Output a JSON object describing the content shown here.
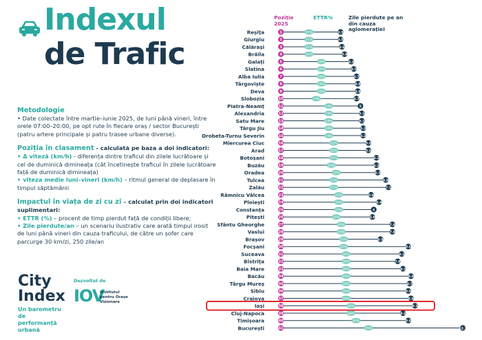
{
  "title": {
    "line1": "Indexul",
    "line2": "de Trafic"
  },
  "methodology": {
    "heading": "Metodologie",
    "text": "• Date colectate între martie–iunie 2025, de luni până vineri, între orele 07:00–20:00, pe opt rute în fiecare oraș / sector București (patru artere principale și patru trasee urbane diverse)."
  },
  "ranking": {
    "heading": "Poziția în clasament",
    "heading_suffix": " - calculată pe baza a doi indicatori:",
    "b1_label": "• Δ viteză (km/h)",
    "b1_text": "- diferența dintre traficul din zilele lucrătoare și cel de duminică dimineața (cât încetinește traficul în zilele lucrătoare față de duminică dimineața)",
    "b2_label": "• viteza medie luni–vineri (km/h)",
    "b2_text": " – ritmul general de deplasare în timpul săptămânii"
  },
  "impact": {
    "heading": "Impactul în viața de zi cu zi",
    "heading_suffix": " – calculat prin doi indicatori suplimentari:",
    "b1_label": "• ETTR (%)",
    "b1_text": " – procent de timp pierdut față de condiții libere;",
    "b2_label": "• Zile pierdute/an",
    "b2_text": " – un scenariu ilustrativ care arată timpul irosit de luni până vineri din cauza traficului, de către un șofer care parcurge 30 km/zi, 250 zile/an"
  },
  "logo": {
    "name1": "City",
    "name2": "Index",
    "tagline": "Un barometru de performanță urbană"
  },
  "developer": {
    "label": "Dezvoltat de",
    "mark": "IOV",
    "name": "Institutul pentru Orașe Vizionare"
  },
  "colors": {
    "teal": "#2aa9a1",
    "navy": "#1d3a4f",
    "magenta": "#c2379c",
    "ettr": "#7dcdbf",
    "highlight": "#e01b24"
  },
  "chart_data": {
    "type": "dot-range",
    "headers": {
      "position": "Poziție 2025",
      "ettr": "ETTR%",
      "days": "Zile pierdute pe an din cauza aglomerației"
    },
    "highlight": "Iași",
    "cities": [
      "Reșița",
      "Giurgiu",
      "Călărași",
      "Brăila",
      "Galați",
      "Slatina",
      "Alba Iulia",
      "Târgoviște",
      "Deva",
      "Slobozia",
      "Piatra-Neamț",
      "Alexandria",
      "Satu Mare",
      "Târgu Jiu",
      "Drobeta-Turnu Severin",
      "Miercurea Ciuc",
      "Arad",
      "Botoșani",
      "Buzău",
      "Oradea",
      "Tulcea",
      "Zalău",
      "Râmnicu Vâlcea",
      "Ploiești",
      "Constanța",
      "Pitești",
      "Sfântu Gheorghe",
      "Vaslui",
      "Brașov",
      "Focșani",
      "Suceava",
      "Bistrița",
      "Baia Mare",
      "Bacău",
      "Târgu Mureș",
      "Sibiu",
      "Craiova",
      "Iași",
      "Cluj-Napoca",
      "Timișoara",
      "București"
    ],
    "positions": [
      1,
      2,
      3,
      4,
      5,
      6,
      7,
      8,
      9,
      10,
      11,
      12,
      13,
      14,
      15,
      16,
      17,
      18,
      19,
      20,
      21,
      22,
      23,
      24,
      25,
      26,
      27,
      28,
      29,
      30,
      31,
      32,
      33,
      34,
      35,
      36,
      37,
      38,
      39,
      40,
      41
    ],
    "ettr": [
      "11%",
      "11%",
      "11%",
      "11%",
      "16%",
      "16%",
      "16%",
      "16%",
      "16%",
      "14%",
      "19%",
      "19%",
      "19%",
      "19%",
      "19%",
      "21%",
      "21%",
      "21%",
      "20%",
      "22%",
      "21%",
      "21%",
      "23%",
      "23%",
      "23%",
      "22%",
      "24%",
      "24%",
      "25%",
      "25%",
      "26%",
      "26%",
      "26%",
      "26%",
      "26%",
      "26%",
      "26%",
      "28%",
      "28%",
      "30%",
      "35%"
    ],
    "days": [
      "3.5",
      "3.5",
      "3.6",
      "3.8",
      "4.3",
      "4.5",
      "4.7",
      "4.8",
      "4.8",
      "4.7",
      "5",
      "5.1",
      "5.1",
      "5.2",
      "5.2",
      "5.6",
      "5.6",
      "6.2",
      "6.2",
      "6.3",
      "6.9",
      "7.1",
      "5.8",
      "6.4",
      "6",
      "5.9",
      "7.4",
      "7.4",
      "6.5",
      "8.6",
      "8.1",
      "7.8",
      "8.2",
      "8.8",
      "8.7",
      "8.6",
      "8.8",
      "9.1",
      "8.2",
      "8.6",
      "12.7"
    ],
    "ettr_x": [
      11,
      11,
      11,
      11,
      16,
      16,
      16,
      16,
      16,
      14,
      19,
      19,
      19,
      19,
      19,
      21,
      21,
      21,
      20,
      22,
      21,
      21,
      23,
      23,
      23,
      22,
      24,
      24,
      25,
      25,
      26,
      26,
      26,
      26,
      26,
      26,
      26,
      28,
      28,
      30,
      35
    ],
    "days_x": [
      3.5,
      3.5,
      3.6,
      3.8,
      4.3,
      4.5,
      4.7,
      4.8,
      4.8,
      4.7,
      5,
      5.1,
      5.1,
      5.2,
      5.2,
      5.6,
      5.6,
      6.2,
      6.2,
      6.3,
      6.9,
      7.1,
      5.8,
      6.4,
      6,
      5.9,
      7.4,
      7.4,
      6.5,
      8.6,
      8.1,
      7.8,
      8.2,
      8.8,
      8.7,
      8.6,
      8.8,
      9.1,
      8.2,
      8.6,
      12.7
    ]
  }
}
